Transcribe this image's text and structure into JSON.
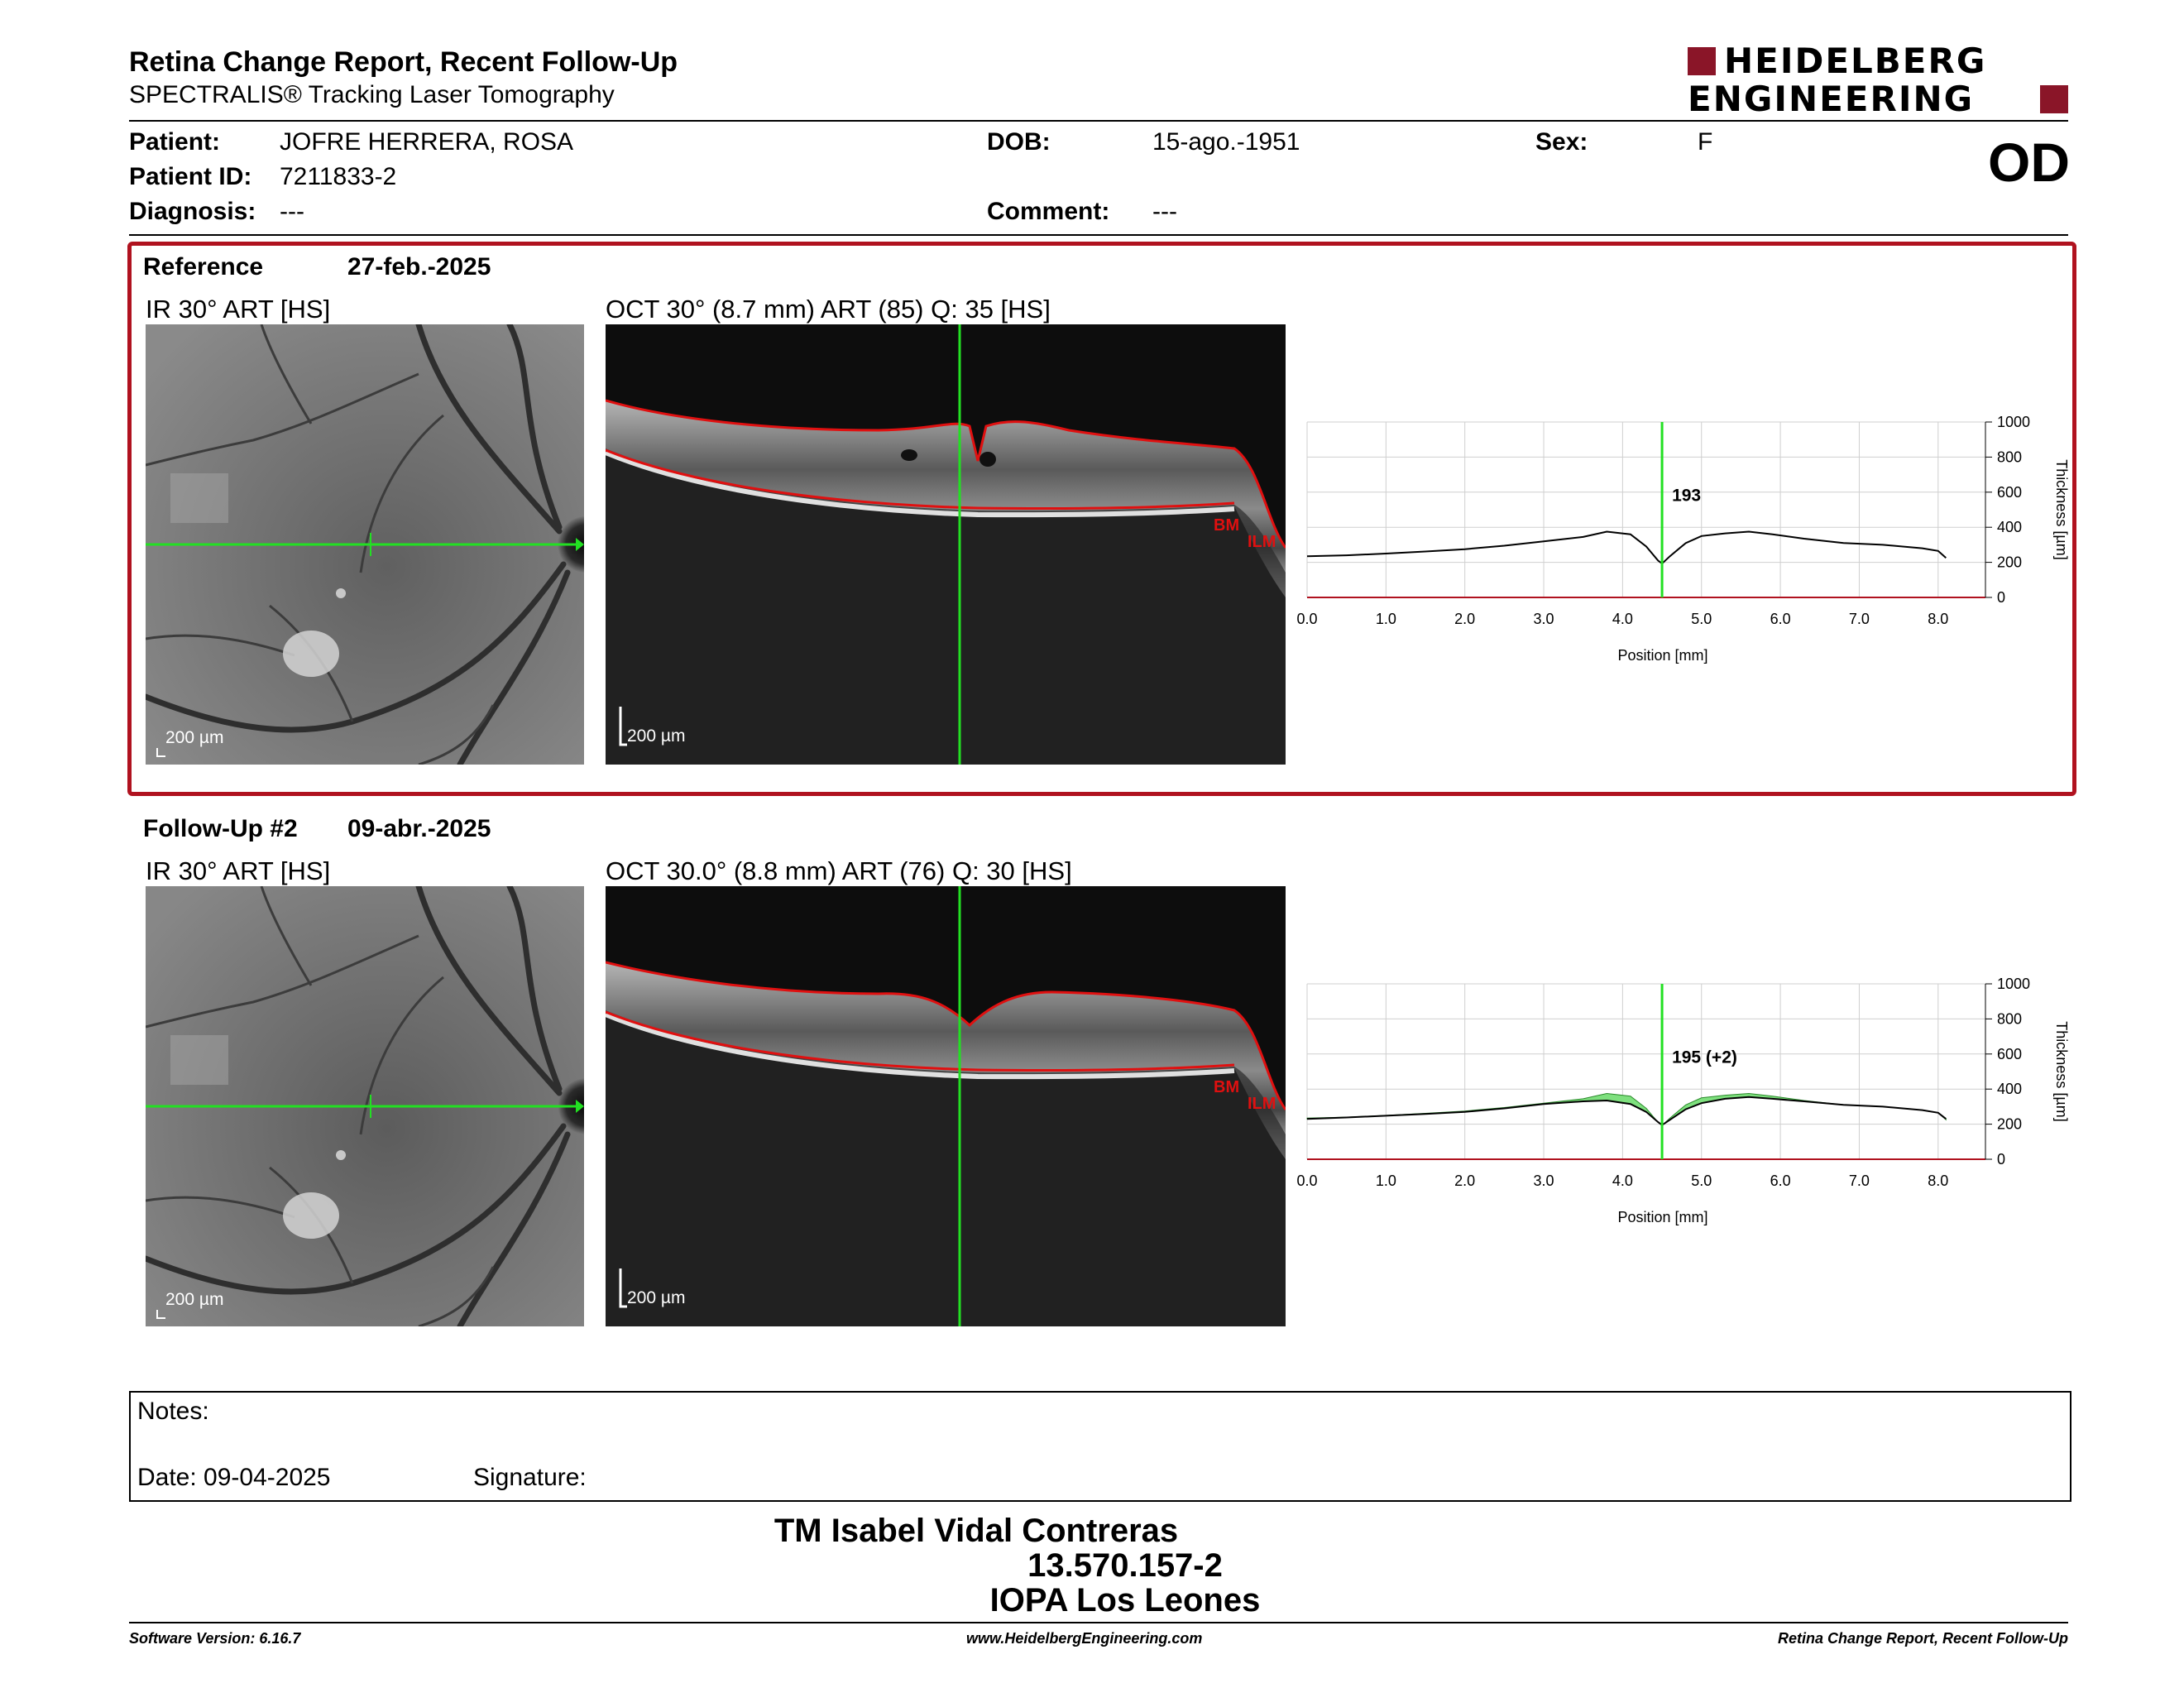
{
  "header": {
    "title": "Retina Change Report, Recent Follow-Up",
    "subtitle": "SPECTRALIS® Tracking Laser Tomography",
    "logo_line1": "HEIDELBERG",
    "logo_line2": "ENGINEERING"
  },
  "patient": {
    "patient_label": "Patient:",
    "patient_value": "JOFRE HERRERA, ROSA",
    "id_label": "Patient ID:",
    "id_value": "7211833-2",
    "diagnosis_label": "Diagnosis:",
    "diagnosis_value": "---",
    "dob_label": "DOB:",
    "dob_value": "15-ago.-1951",
    "comment_label": "Comment:",
    "comment_value": "---",
    "sex_label": "Sex:",
    "sex_value": "F",
    "eye": "OD"
  },
  "reference": {
    "label": "Reference",
    "date": "27-feb.-2025",
    "ir_title": "IR 30° ART [HS]",
    "oct_title": "OCT 30° (8.7 mm) ART (85) Q: 35 [HS]",
    "ir_scale": "200 µm",
    "oct_scale": "200 µm",
    "bm_label": "BM",
    "ilm_label": "ILM"
  },
  "followup": {
    "label": "Follow-Up #2",
    "date": "09-abr.-2025",
    "ir_title": "IR 30° ART [HS]",
    "oct_title": "OCT 30.0° (8.8 mm) ART (76) Q: 30 [HS]",
    "ir_scale": "200 µm",
    "oct_scale": "200 µm",
    "bm_label": "BM",
    "ilm_label": "ILM"
  },
  "chart_data": [
    {
      "type": "line",
      "xlabel": "Position [mm]",
      "ylabel": "Thickness [µm]",
      "xlim": [
        0,
        8.6
      ],
      "ylim": [
        0,
        1000
      ],
      "x_ticks": [
        "0.0",
        "1.0",
        "2.0",
        "3.0",
        "4.0",
        "5.0",
        "6.0",
        "7.0",
        "8.0"
      ],
      "y_ticks": [
        "0",
        "200",
        "400",
        "600",
        "800",
        "1000"
      ],
      "marker_x": 4.5,
      "marker_label": "193",
      "series": [
        {
          "values_x": [
            0,
            0.5,
            1,
            1.5,
            2,
            2.5,
            3,
            3.5,
            3.8,
            4.1,
            4.3,
            4.45,
            4.5,
            4.6,
            4.8,
            5.0,
            5.3,
            5.6,
            5.9,
            6.3,
            6.8,
            7.3,
            7.8,
            8.0,
            8.1
          ],
          "values_y": [
            235,
            240,
            250,
            262,
            275,
            295,
            320,
            345,
            375,
            360,
            290,
            210,
            193,
            235,
            310,
            350,
            365,
            375,
            360,
            335,
            310,
            300,
            280,
            265,
            225
          ]
        }
      ]
    },
    {
      "type": "line",
      "xlabel": "Position [mm]",
      "ylabel": "Thickness [µm]",
      "xlim": [
        0,
        8.6
      ],
      "ylim": [
        0,
        1000
      ],
      "x_ticks": [
        "0.0",
        "1.0",
        "2.0",
        "3.0",
        "4.0",
        "5.0",
        "6.0",
        "7.0",
        "8.0"
      ],
      "y_ticks": [
        "0",
        "200",
        "400",
        "600",
        "800",
        "1000"
      ],
      "marker_x": 4.5,
      "marker_label": "195 (+2)",
      "series": [
        {
          "values_x": [
            0,
            0.5,
            1,
            1.5,
            2,
            2.5,
            3,
            3.5,
            3.8,
            4.1,
            4.3,
            4.45,
            4.5,
            4.6,
            4.8,
            5.0,
            5.3,
            5.6,
            5.9,
            6.3,
            6.8,
            7.3,
            7.8,
            8.0,
            8.1
          ],
          "values_y": [
            230,
            238,
            248,
            258,
            270,
            290,
            315,
            330,
            335,
            315,
            270,
            212,
            195,
            225,
            285,
            320,
            345,
            355,
            345,
            330,
            310,
            300,
            280,
            265,
            230
          ]
        }
      ]
    }
  ],
  "notes": {
    "notes_label": "Notes:",
    "date_label": "Date: 09-04-2025",
    "signature_label": "Signature:"
  },
  "signer": {
    "name": "TM Isabel Vidal Contreras",
    "rut": "13.570.157-2",
    "institution": "IOPA Los Leones"
  },
  "footer": {
    "left": "Software Version: 6.16.7",
    "center": "www.HeidelbergEngineering.com",
    "right": "Retina Change Report, Recent Follow-Up"
  },
  "colors": {
    "accent_red": "#b0121f",
    "green": "#22e022",
    "seg_red": "#e01010"
  }
}
